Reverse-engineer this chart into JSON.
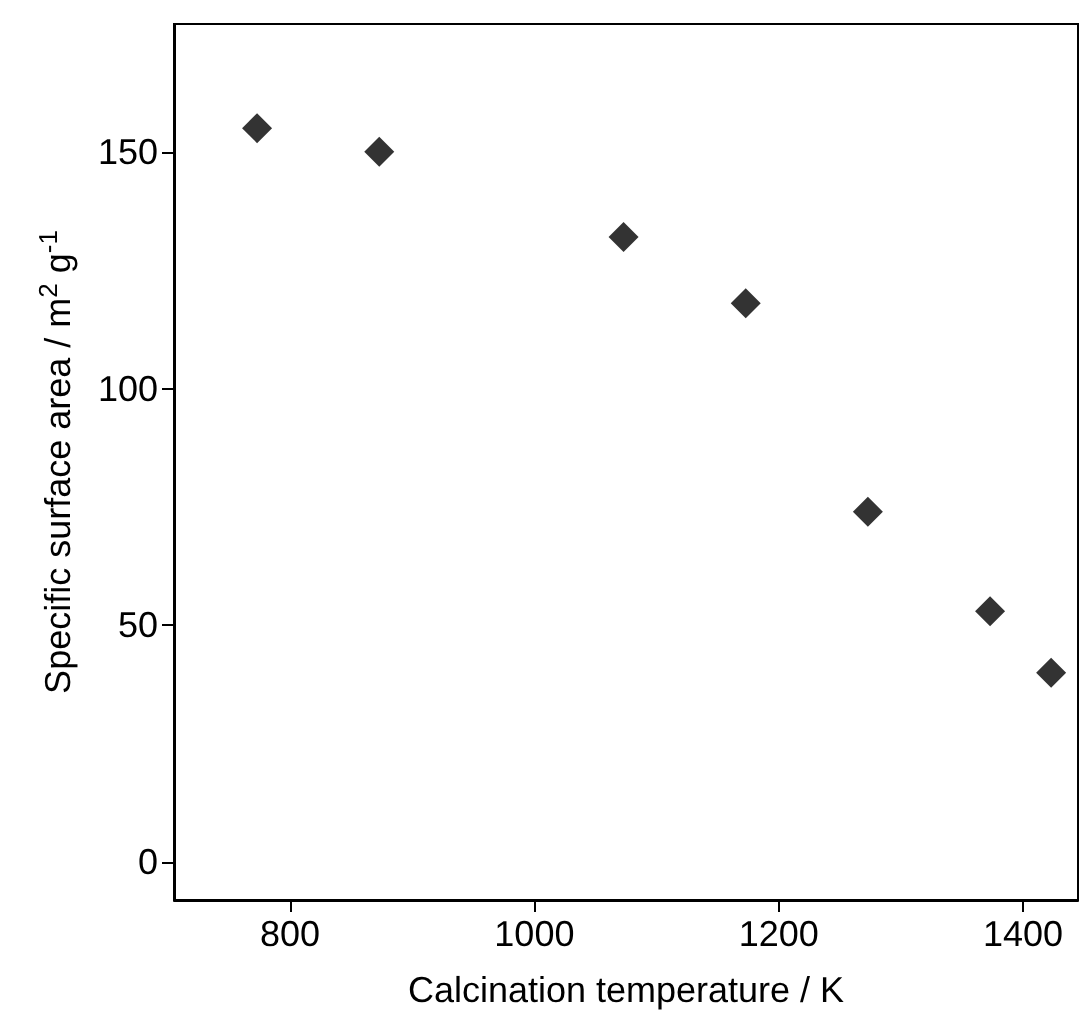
{
  "chart_data": {
    "type": "scatter",
    "xlabel": "Calcination temperature / K",
    "ylabel": "Specific surface area / m$^{2}$ g$^{-1}$",
    "x": [
      773,
      873,
      1073,
      1173,
      1273,
      1373,
      1423
    ],
    "series": [
      {
        "color": "#000000",
        "values": [
          155,
          150,
          132,
          118,
          74,
          53,
          40
        ]
      }
    ],
    "xlim": [
      705,
      1445
    ],
    "xticks": [
      800,
      1000,
      1200,
      1400
    ],
    "ylim": [
      -8,
      177
    ],
    "yticks": [
      0,
      50,
      100,
      150
    ],
    "marker": "diamond",
    "grid": false
  }
}
